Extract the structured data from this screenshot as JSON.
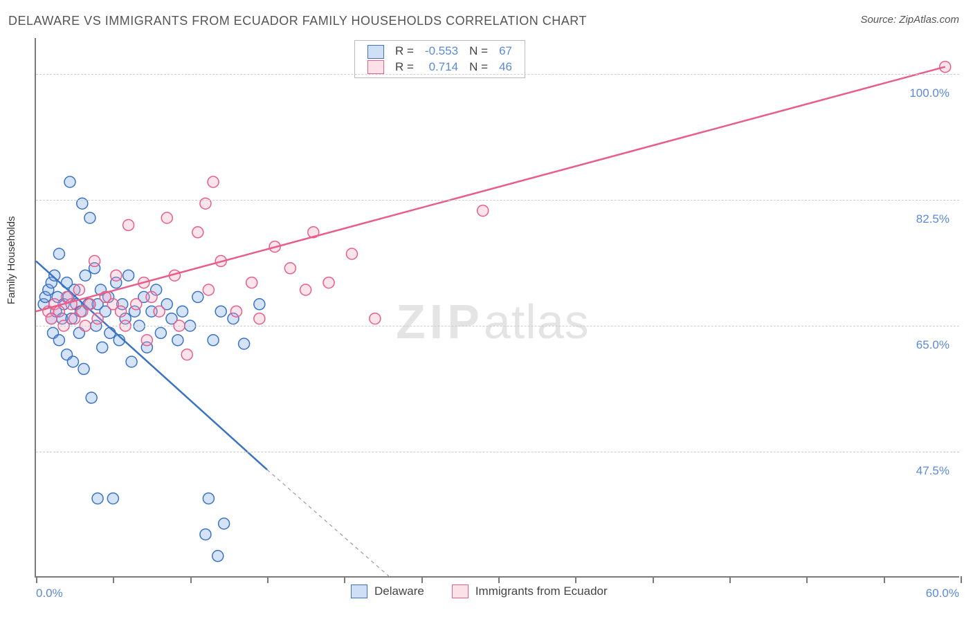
{
  "title": "DELAWARE VS IMMIGRANTS FROM ECUADOR FAMILY HOUSEHOLDS CORRELATION CHART",
  "source": "Source: ZipAtlas.com",
  "watermark_bold": "ZIP",
  "watermark_light": "atlas",
  "chart": {
    "type": "scatter",
    "ylabel": "Family Households",
    "xlim": [
      0,
      60
    ],
    "ylim": [
      30,
      105
    ],
    "x_tick_positions": [
      0,
      5,
      10,
      15,
      20,
      25,
      30,
      35,
      40,
      45,
      50,
      55,
      60
    ],
    "y_gridlines": [
      47.5,
      65.0,
      82.5,
      100.0
    ],
    "y_tick_labels": [
      "47.5%",
      "65.0%",
      "82.5%",
      "100.0%"
    ],
    "x_left_label": "0.0%",
    "x_right_label": "60.0%",
    "background_color": "#ffffff",
    "grid_color": "#cccccc",
    "axis_color": "#7a7a7a",
    "point_radius": 8,
    "point_stroke_width": 1.5,
    "point_fill_opacity": 0.3,
    "line_width": 2.5,
    "series": [
      {
        "name": "Delaware",
        "color": "#6fa2e3",
        "stroke": "#3a72c4",
        "R": "-0.553",
        "N": "67",
        "trend_solid": {
          "x1": 0,
          "y1": 74,
          "x2": 15,
          "y2": 45
        },
        "trend_dashed": {
          "x1": 15,
          "y1": 45,
          "x2": 23,
          "y2": 30
        },
        "points": [
          [
            0.5,
            68
          ],
          [
            0.6,
            69
          ],
          [
            0.8,
            70
          ],
          [
            1.0,
            71
          ],
          [
            1.0,
            66
          ],
          [
            1.1,
            64
          ],
          [
            1.2,
            72
          ],
          [
            1.3,
            67
          ],
          [
            1.4,
            69
          ],
          [
            1.5,
            63
          ],
          [
            1.5,
            75
          ],
          [
            1.7,
            66
          ],
          [
            1.8,
            68
          ],
          [
            2.0,
            71
          ],
          [
            2.0,
            61
          ],
          [
            2.1,
            69
          ],
          [
            2.2,
            85
          ],
          [
            2.3,
            66
          ],
          [
            2.4,
            60
          ],
          [
            2.5,
            70
          ],
          [
            2.6,
            68
          ],
          [
            2.8,
            64
          ],
          [
            2.9,
            67
          ],
          [
            3.0,
            82
          ],
          [
            3.1,
            59
          ],
          [
            3.2,
            72
          ],
          [
            3.4,
            68
          ],
          [
            3.5,
            80
          ],
          [
            3.6,
            55
          ],
          [
            3.8,
            73
          ],
          [
            3.9,
            65
          ],
          [
            4.0,
            68
          ],
          [
            4.0,
            41
          ],
          [
            4.2,
            70
          ],
          [
            4.3,
            62
          ],
          [
            4.5,
            67
          ],
          [
            4.7,
            69
          ],
          [
            4.8,
            64
          ],
          [
            5.0,
            41
          ],
          [
            5.2,
            71
          ],
          [
            5.4,
            63
          ],
          [
            5.6,
            68
          ],
          [
            5.8,
            66
          ],
          [
            6.0,
            72
          ],
          [
            6.2,
            60
          ],
          [
            6.4,
            67
          ],
          [
            6.7,
            65
          ],
          [
            7.0,
            69
          ],
          [
            7.2,
            62
          ],
          [
            7.5,
            67
          ],
          [
            7.8,
            70
          ],
          [
            8.1,
            64
          ],
          [
            8.5,
            68
          ],
          [
            8.8,
            66
          ],
          [
            9.2,
            63
          ],
          [
            9.5,
            67
          ],
          [
            10.0,
            65
          ],
          [
            10.5,
            69
          ],
          [
            11.0,
            36
          ],
          [
            11.2,
            41
          ],
          [
            11.8,
            33
          ],
          [
            11.5,
            63
          ],
          [
            12.0,
            67
          ],
          [
            12.2,
            37.5
          ],
          [
            12.8,
            66
          ],
          [
            13.5,
            62.5
          ],
          [
            14.5,
            68
          ]
        ]
      },
      {
        "name": "Immigrants from Ecuador",
        "color": "#f7a6bc",
        "stroke": "#e85d8a",
        "R": "0.714",
        "N": "46",
        "trend_solid": {
          "x1": 0,
          "y1": 67,
          "x2": 59,
          "y2": 101
        },
        "trend_dashed": null,
        "points": [
          [
            0.8,
            67
          ],
          [
            1.0,
            66
          ],
          [
            1.2,
            68
          ],
          [
            1.5,
            67
          ],
          [
            1.8,
            65
          ],
          [
            2.0,
            69
          ],
          [
            2.3,
            68
          ],
          [
            2.5,
            66
          ],
          [
            2.8,
            70
          ],
          [
            3.0,
            67
          ],
          [
            3.2,
            65
          ],
          [
            3.5,
            68
          ],
          [
            3.8,
            74
          ],
          [
            4.0,
            66
          ],
          [
            4.5,
            69
          ],
          [
            5.0,
            68
          ],
          [
            5.2,
            72
          ],
          [
            5.5,
            67
          ],
          [
            5.8,
            65
          ],
          [
            6.0,
            79
          ],
          [
            6.5,
            68
          ],
          [
            7.0,
            71
          ],
          [
            7.2,
            63
          ],
          [
            7.5,
            69
          ],
          [
            8.0,
            67
          ],
          [
            8.5,
            80
          ],
          [
            9.0,
            72
          ],
          [
            9.3,
            65
          ],
          [
            9.8,
            61
          ],
          [
            10.5,
            78
          ],
          [
            11.0,
            82
          ],
          [
            11.2,
            70
          ],
          [
            11.5,
            85
          ],
          [
            12.0,
            74
          ],
          [
            13.0,
            67
          ],
          [
            14.0,
            71
          ],
          [
            14.5,
            66
          ],
          [
            15.5,
            76
          ],
          [
            16.5,
            73
          ],
          [
            17.5,
            70
          ],
          [
            18.0,
            78
          ],
          [
            19.0,
            71
          ],
          [
            20.5,
            75
          ],
          [
            22.0,
            66
          ],
          [
            29.0,
            81
          ],
          [
            59.0,
            101
          ]
        ]
      }
    ],
    "legend_top": {
      "rows": [
        {
          "swatch_series": 0,
          "r_label": "R =",
          "r_val": "-0.553",
          "n_label": "N =",
          "n_val": "67"
        },
        {
          "swatch_series": 1,
          "r_label": "R =",
          "r_val": "0.714",
          "n_label": "N =",
          "n_val": "46"
        }
      ]
    },
    "legend_bottom": [
      {
        "swatch_series": 0,
        "label": "Delaware"
      },
      {
        "swatch_series": 1,
        "label": "Immigrants from Ecuador"
      }
    ]
  }
}
